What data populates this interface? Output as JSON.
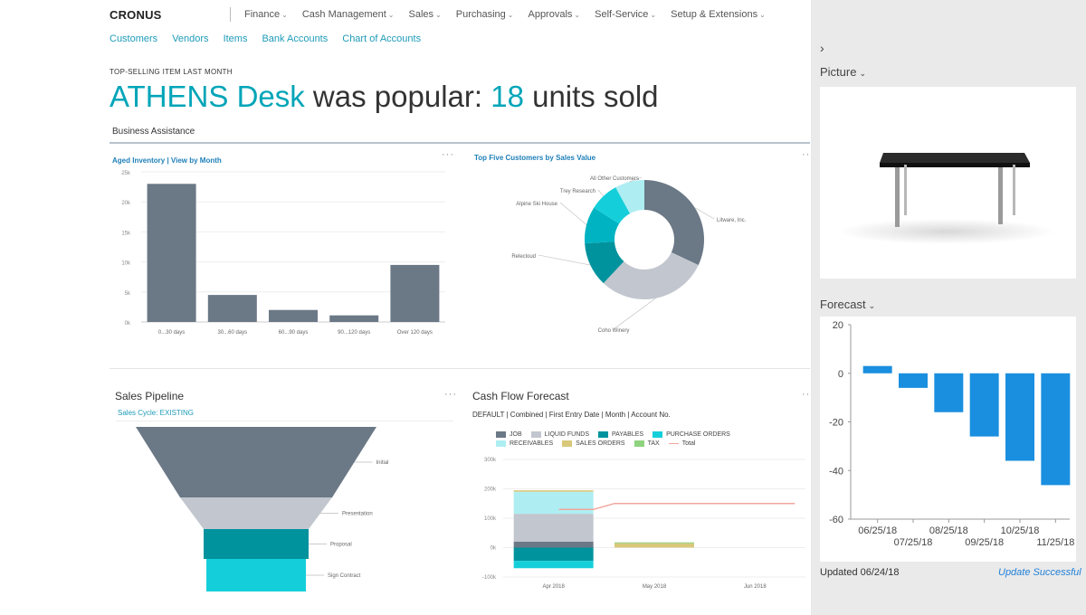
{
  "topbar": {
    "brand": "CRONUS",
    "menu": [
      "Finance",
      "Cash Management",
      "Sales",
      "Purchasing",
      "Approvals",
      "Self-Service",
      "Setup & Extensions"
    ],
    "quick_links": [
      "Customers",
      "Vendors",
      "Items",
      "Bank Accounts",
      "Chart of Accounts"
    ]
  },
  "headline": {
    "kicker": "TOP-SELLING ITEM LAST MONTH",
    "item": "ATHENS Desk",
    "middle": " was popular: ",
    "count": "18",
    "suffix": " units sold"
  },
  "business_assistance": "Business Assistance",
  "aged_inventory": {
    "title": "Aged Inventory | View by Month",
    "more": "···",
    "chart_data": {
      "type": "bar",
      "categories": [
        "0...30 days",
        "30...60 days",
        "60...90 days",
        "90...120 days",
        "Over 120 days"
      ],
      "values": [
        23000,
        4500,
        2000,
        1100,
        9500
      ],
      "ylim": [
        0,
        25000
      ],
      "yticks": [
        "0k",
        "5k",
        "10k",
        "15k",
        "20k",
        "25k"
      ],
      "color": "#6b7886"
    }
  },
  "top_customers": {
    "title": "Top Five Customers by Sales Value",
    "more": "···",
    "chart_data": {
      "type": "pie",
      "donut": true,
      "slices": [
        {
          "label": "Litware, Inc.",
          "value": 32,
          "color": "#6b7886"
        },
        {
          "label": "Coho Winery",
          "value": 30,
          "color": "#c2c6ce"
        },
        {
          "label": "Relecloud",
          "value": 12,
          "color": "#00939e"
        },
        {
          "label": "Alpine Ski House",
          "value": 10,
          "color": "#00b3c2"
        },
        {
          "label": "Trey Research",
          "value": 8,
          "color": "#14cfda"
        },
        {
          "label": "All Other Customers",
          "value": 8,
          "color": "#aeeef2"
        }
      ]
    }
  },
  "sales_pipeline": {
    "title": "Sales Pipeline",
    "more": "···",
    "caption": "Sales Cycle: EXISTING",
    "chart_data": {
      "type": "funnel",
      "stages": [
        {
          "label": "Initial",
          "color": "#6b7886"
        },
        {
          "label": "Presentation",
          "color": "#c2c6ce"
        },
        {
          "label": "Proposal",
          "color": "#00939e"
        },
        {
          "label": "Sign Contract",
          "color": "#14cfda"
        }
      ]
    }
  },
  "cash_flow": {
    "title": "Cash Flow Forecast",
    "more": "···",
    "subtitle": "DEFAULT | Combined | First Entry Date | Month | Account No.",
    "legend": [
      {
        "label": "JOB",
        "color": "#6b7886"
      },
      {
        "label": "LIQUID FUNDS",
        "color": "#c2c6ce"
      },
      {
        "label": "PAYABLES",
        "color": "#00939e"
      },
      {
        "label": "PURCHASE ORDERS",
        "color": "#14cfda"
      },
      {
        "label": "RECEIVABLES",
        "color": "#aeeef2"
      },
      {
        "label": "SALES ORDERS",
        "color": "#d8c87a"
      },
      {
        "label": "TAX",
        "color": "#8fd37e"
      },
      {
        "label": "Total",
        "color": "#f2a59a",
        "line": true
      }
    ],
    "chart_data": {
      "type": "bar",
      "stacked": true,
      "categories": [
        "Apr 2018",
        "May 2018",
        "Jun 2018"
      ],
      "ylim": [
        -100000,
        300000
      ],
      "yticks": [
        "-100k",
        "0k",
        "100k",
        "200k",
        "300k"
      ],
      "series": [
        {
          "name": "JOB",
          "values": [
            20000,
            0,
            0
          ]
        },
        {
          "name": "LIQUID FUNDS",
          "values": [
            95000,
            0,
            0
          ]
        },
        {
          "name": "RECEIVABLES",
          "values": [
            75000,
            0,
            0
          ]
        },
        {
          "name": "SALES ORDERS",
          "values": [
            5000,
            15000,
            0
          ]
        },
        {
          "name": "TAX",
          "values": [
            0,
            3000,
            0
          ]
        },
        {
          "name": "PAYABLES",
          "values": [
            -45000,
            0,
            0
          ]
        },
        {
          "name": "PURCHASE ORDERS",
          "values": [
            -25000,
            0,
            0
          ]
        }
      ],
      "total_line": [
        130000,
        150000,
        150000
      ]
    }
  },
  "right_panel": {
    "toggle": "›",
    "picture_label": "Picture",
    "forecast_label": "Forecast",
    "updated": "Updated 06/24/18",
    "status": "Update Successful",
    "chart_data": {
      "type": "bar",
      "categories": [
        "06/25/18",
        "07/25/18",
        "08/25/18",
        "09/25/18",
        "10/25/18",
        "11/25/18"
      ],
      "values": [
        3,
        -6,
        -16,
        -26,
        -36,
        -46
      ],
      "ylim": [
        -60,
        20
      ],
      "yticks": [
        "20",
        "0",
        "-20",
        "-40",
        "-60"
      ],
      "color": "#1a8fdf"
    }
  }
}
